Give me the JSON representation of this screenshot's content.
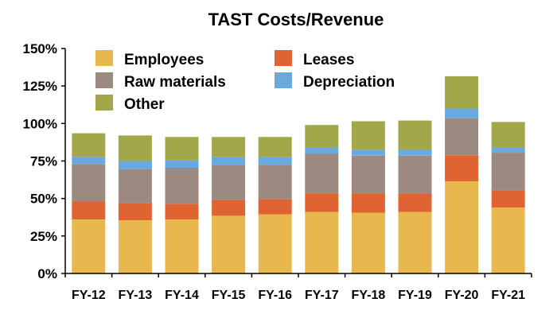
{
  "chart_data": {
    "type": "bar",
    "stacked": true,
    "title": "TAST Costs/Revenue",
    "xlabel": "",
    "ylabel": "",
    "ylim": [
      0,
      150
    ],
    "yticks": [
      "0%",
      "25%",
      "50%",
      "75%",
      "100%",
      "125%",
      "150%"
    ],
    "categories": [
      "FY-12",
      "FY-13",
      "FY-14",
      "FY-15",
      "FY-16",
      "FY-17",
      "FY-18",
      "FY-19",
      "FY-20",
      "FY-21"
    ],
    "series": [
      {
        "name": "Employees",
        "color": "#e8b84e",
        "values": [
          36,
          35.5,
          36,
          38.5,
          39.5,
          41,
          40.5,
          41,
          61.5,
          44
        ]
      },
      {
        "name": "Leases",
        "color": "#e06432",
        "values": [
          12,
          11.5,
          10.5,
          10.5,
          10,
          12,
          12.5,
          12,
          17,
          11.5
        ]
      },
      {
        "name": "Raw materials",
        "color": "#9c8a80",
        "values": [
          25,
          22.5,
          24,
          23.5,
          23,
          27,
          25.5,
          25.5,
          25,
          25
        ]
      },
      {
        "name": "Depreciation",
        "color": "#6aa9de",
        "values": [
          4.5,
          5.5,
          5,
          5,
          5,
          4,
          4,
          4,
          6.5,
          3.5
        ]
      },
      {
        "name": "Other",
        "color": "#a2a84a",
        "values": [
          16,
          17,
          15.5,
          13.5,
          13.5,
          15,
          19,
          19.5,
          21.5,
          17
        ]
      }
    ],
    "legend": "top-left, inside plot, two columns",
    "grid": false
  }
}
